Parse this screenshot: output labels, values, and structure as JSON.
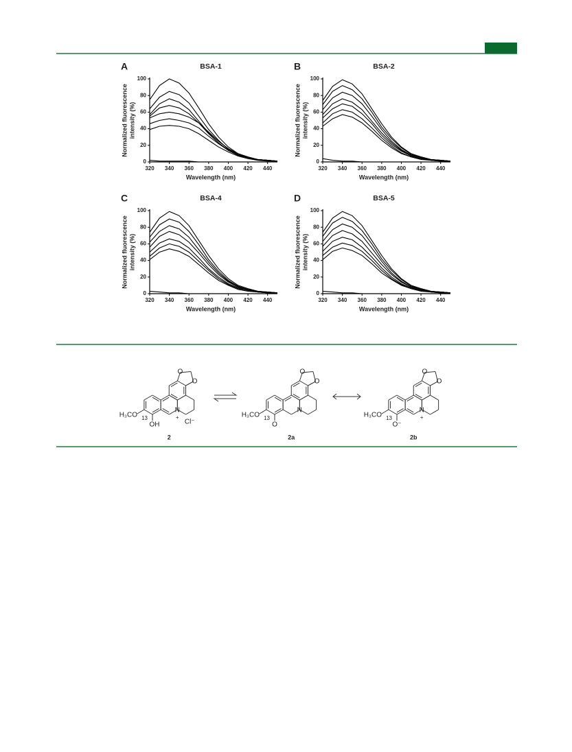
{
  "chart_data": [
    {
      "type": "line",
      "panel": "A",
      "title": "BSA-1",
      "x_label": "Wavelength (nm)",
      "y_label": [
        "Normalized fluorescence",
        "intensity (%)"
      ],
      "color": "#000000",
      "x": [
        320,
        330,
        340,
        350,
        360,
        370,
        380,
        390,
        400,
        410,
        420,
        430,
        440,
        450
      ],
      "xlim": [
        320,
        450
      ],
      "ylim": [
        0,
        100
      ],
      "xticks": [
        320,
        340,
        360,
        380,
        400,
        420,
        440
      ],
      "yticks": [
        0,
        20,
        40,
        60,
        80,
        100
      ],
      "series": [
        {
          "values": [
            75,
            92,
            100,
            95,
            83,
            65,
            46,
            30,
            18,
            10,
            6,
            3,
            2,
            1
          ]
        },
        {
          "values": [
            64,
            78,
            85,
            81,
            71,
            55,
            39,
            26,
            15,
            9,
            5,
            3,
            2,
            1
          ]
        },
        {
          "values": [
            57,
            70,
            76,
            72,
            63,
            49,
            35,
            23,
            14,
            8,
            5,
            2,
            2,
            1
          ]
        },
        {
          "values": [
            55,
            65,
            68,
            65,
            58,
            47,
            34,
            23,
            14,
            8,
            5,
            3,
            2,
            1
          ]
        },
        {
          "values": [
            53,
            58,
            60,
            58,
            54,
            47,
            36,
            25,
            16,
            10,
            5,
            3,
            2,
            1
          ]
        },
        {
          "values": [
            46,
            50,
            52,
            50,
            47,
            41,
            31,
            22,
            14,
            8,
            5,
            3,
            2,
            1
          ]
        },
        {
          "values": [
            39,
            43,
            44,
            43,
            40,
            34,
            26,
            18,
            12,
            7,
            4,
            2,
            1,
            1
          ]
        },
        {
          "values": [
            2,
            1,
            1,
            1,
            1,
            0,
            0,
            0,
            0,
            0,
            0,
            0,
            0,
            0
          ]
        }
      ]
    },
    {
      "type": "line",
      "panel": "B",
      "title": "BSA-2",
      "x_label": "Wavelength (nm)",
      "y_label": [
        "Normalized fluorescence",
        "intensity (%)"
      ],
      "color": "#000000",
      "x": [
        320,
        330,
        340,
        350,
        360,
        370,
        380,
        390,
        400,
        410,
        420,
        430,
        440,
        450
      ],
      "xlim": [
        320,
        450
      ],
      "ylim": [
        0,
        100
      ],
      "xticks": [
        320,
        340,
        360,
        380,
        400,
        420,
        440
      ],
      "yticks": [
        0,
        20,
        40,
        60,
        80,
        100
      ],
      "series": [
        {
          "values": [
            74,
            91,
            99,
            94,
            82,
            64,
            46,
            30,
            18,
            10,
            6,
            3,
            2,
            1
          ]
        },
        {
          "values": [
            69,
            85,
            92,
            87,
            76,
            60,
            42,
            28,
            17,
            9,
            6,
            3,
            2,
            1
          ]
        },
        {
          "values": [
            63,
            77,
            84,
            80,
            70,
            55,
            39,
            25,
            15,
            8,
            5,
            3,
            2,
            1
          ]
        },
        {
          "values": [
            57,
            70,
            76,
            72,
            63,
            49,
            35,
            23,
            14,
            8,
            5,
            2,
            2,
            1
          ]
        },
        {
          "values": [
            53,
            64,
            70,
            67,
            58,
            46,
            32,
            21,
            13,
            7,
            4,
            2,
            1,
            1
          ]
        },
        {
          "values": [
            47,
            58,
            63,
            60,
            52,
            41,
            29,
            19,
            11,
            6,
            4,
            2,
            1,
            1
          ]
        },
        {
          "values": [
            43,
            52,
            57,
            54,
            47,
            37,
            26,
            17,
            10,
            6,
            3,
            2,
            1,
            1
          ]
        },
        {
          "values": [
            4,
            2,
            1,
            1,
            0,
            0,
            0,
            0,
            0,
            0,
            0,
            0,
            0,
            0
          ]
        }
      ]
    },
    {
      "type": "line",
      "panel": "C",
      "title": "BSA-4",
      "x_label": "Wavelength (nm)",
      "y_label": [
        "Normalized fluorescence",
        "intensity (%)"
      ],
      "color": "#000000",
      "x": [
        320,
        330,
        340,
        350,
        360,
        370,
        380,
        390,
        400,
        410,
        420,
        430,
        440,
        450
      ],
      "xlim": [
        320,
        450
      ],
      "ylim": [
        0,
        100
      ],
      "xticks": [
        320,
        340,
        360,
        380,
        400,
        420,
        440
      ],
      "yticks": [
        0,
        20,
        40,
        60,
        80,
        100
      ],
      "series": [
        {
          "values": [
            74,
            91,
            99,
            94,
            82,
            64,
            46,
            30,
            18,
            10,
            6,
            3,
            2,
            1
          ]
        },
        {
          "values": [
            68,
            83,
            90,
            86,
            75,
            59,
            41,
            27,
            16,
            9,
            5,
            3,
            2,
            1
          ]
        },
        {
          "values": [
            62,
            75,
            82,
            78,
            68,
            53,
            38,
            25,
            15,
            8,
            5,
            2,
            2,
            1
          ]
        },
        {
          "values": [
            56,
            69,
            75,
            71,
            62,
            49,
            35,
            23,
            14,
            8,
            5,
            2,
            2,
            1
          ]
        },
        {
          "values": [
            50,
            61,
            66,
            63,
            55,
            43,
            30,
            20,
            12,
            7,
            4,
            2,
            1,
            1
          ]
        },
        {
          "values": [
            45,
            55,
            60,
            57,
            50,
            39,
            28,
            18,
            11,
            6,
            4,
            2,
            1,
            1
          ]
        },
        {
          "values": [
            41,
            50,
            54,
            51,
            45,
            35,
            25,
            16,
            10,
            5,
            3,
            2,
            1,
            1
          ]
        },
        {
          "values": [
            3,
            2,
            1,
            1,
            0,
            0,
            0,
            0,
            0,
            0,
            0,
            0,
            0,
            0
          ]
        }
      ]
    },
    {
      "type": "line",
      "panel": "D",
      "title": "BSA-5",
      "x_label": "Wavelength (nm)",
      "y_label": [
        "Normalized fluorescence",
        "intensity (%)"
      ],
      "color": "#000000",
      "x": [
        320,
        330,
        340,
        350,
        360,
        370,
        380,
        390,
        400,
        410,
        420,
        430,
        440,
        450
      ],
      "xlim": [
        320,
        450
      ],
      "ylim": [
        0,
        100
      ],
      "xticks": [
        320,
        340,
        360,
        380,
        400,
        420,
        440
      ],
      "yticks": [
        0,
        20,
        40,
        60,
        80,
        100
      ],
      "series": [
        {
          "values": [
            74,
            91,
            99,
            94,
            82,
            64,
            46,
            30,
            18,
            10,
            6,
            3,
            2,
            1
          ]
        },
        {
          "values": [
            69,
            85,
            92,
            87,
            76,
            60,
            42,
            28,
            17,
            9,
            6,
            3,
            2,
            1
          ]
        },
        {
          "values": [
            63,
            77,
            84,
            80,
            70,
            55,
            39,
            25,
            15,
            8,
            5,
            3,
            2,
            1
          ]
        },
        {
          "values": [
            57,
            70,
            76,
            72,
            63,
            49,
            35,
            23,
            14,
            8,
            5,
            2,
            2,
            1
          ]
        },
        {
          "values": [
            51,
            63,
            68,
            65,
            56,
            44,
            31,
            20,
            12,
            7,
            4,
            2,
            1,
            1
          ]
        },
        {
          "values": [
            46,
            56,
            61,
            58,
            51,
            40,
            28,
            18,
            11,
            6,
            4,
            2,
            1,
            1
          ]
        },
        {
          "values": [
            41,
            51,
            55,
            52,
            46,
            36,
            25,
            17,
            10,
            6,
            3,
            2,
            1,
            1
          ]
        },
        {
          "values": [
            3,
            2,
            1,
            1,
            0,
            0,
            0,
            0,
            0,
            0,
            0,
            0,
            0,
            0
          ]
        }
      ]
    }
  ],
  "scheme": {
    "compounds": [
      {
        "label": "2",
        "methoxy": "H₃CO",
        "position": "13",
        "substituent": "OH",
        "nitrogen": "N",
        "charge": "+",
        "counterion": "Cl⁻"
      },
      {
        "label": "2a",
        "methoxy": "H₃CO",
        "position": "13",
        "substituent": "O",
        "nitrogen": "N"
      },
      {
        "label": "2b",
        "methoxy": "H₃CO",
        "position": "13",
        "substituent": "O⁻",
        "nitrogen": "N",
        "charge": "+"
      }
    ]
  }
}
